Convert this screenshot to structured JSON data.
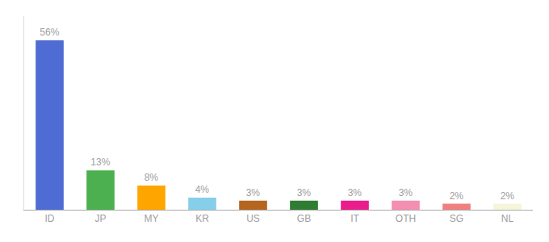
{
  "chart_data": {
    "type": "bar",
    "categories": [
      "ID",
      "JP",
      "MY",
      "KR",
      "US",
      "GB",
      "IT",
      "OTH",
      "SG",
      "NL"
    ],
    "values": [
      56,
      13,
      8,
      4,
      3,
      3,
      3,
      3,
      2,
      2
    ],
    "value_labels": [
      "56%",
      "13%",
      "8%",
      "4%",
      "3%",
      "3%",
      "3%",
      "3%",
      "2%",
      "2%"
    ],
    "colors": [
      "#4f6cd4",
      "#4caf50",
      "#ffa500",
      "#87ceeb",
      "#b5651d",
      "#2e7d32",
      "#e91e8c",
      "#f48fb1",
      "#f08080",
      "#f5f5dc"
    ],
    "ylim": [
      0,
      64
    ],
    "yticks": [],
    "grid": false,
    "data_labels": true,
    "tick_labels": "x"
  }
}
